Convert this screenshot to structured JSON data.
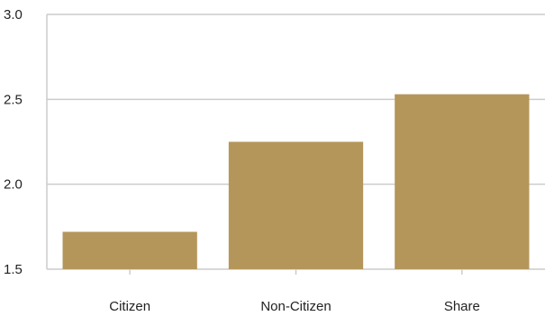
{
  "chart_data": {
    "type": "bar",
    "title": "",
    "xlabel": "",
    "ylabel": "",
    "categories": [
      "Citizen",
      "Non-Citizen",
      "Share"
    ],
    "values": [
      1.72,
      2.25,
      2.53
    ],
    "ylim": [
      1.5,
      3.0
    ],
    "yticks": [
      1.5,
      2.0,
      2.5,
      3.0
    ],
    "ytick_labels": [
      "1.5",
      "2.0",
      "2.5",
      "3.0"
    ],
    "grid": true,
    "bar_color": "#b5965a",
    "grid_color": "#cccccc",
    "axis_color": "#cccccc"
  }
}
